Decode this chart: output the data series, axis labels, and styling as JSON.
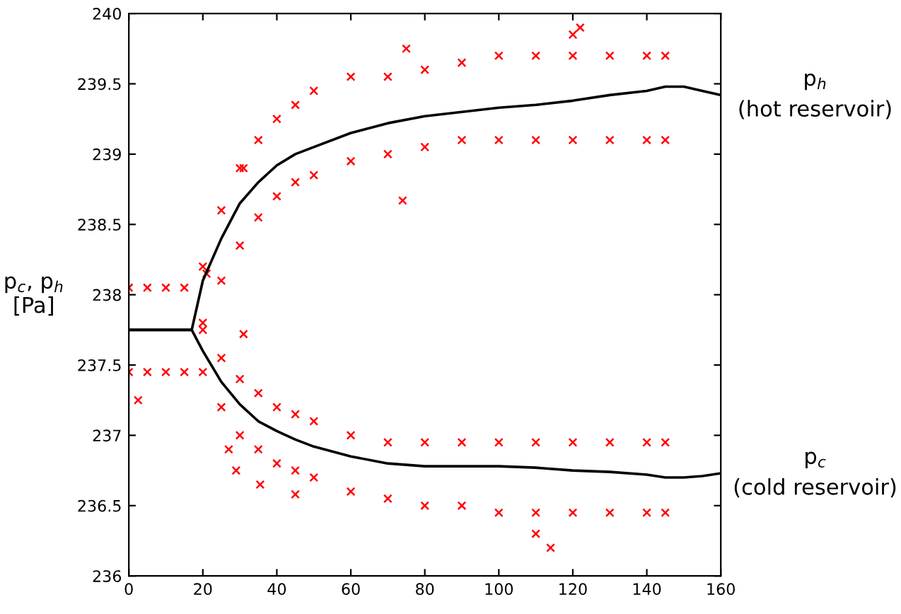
{
  "chart_data": {
    "type": "scatter",
    "ylabel": "p$_{c}$, p$_{h}$\n[Pa]",
    "xlim": [
      0,
      160
    ],
    "xticks": [
      0,
      20,
      40,
      60,
      80,
      100,
      120,
      140,
      160
    ],
    "ylim": [
      236,
      240
    ],
    "yticks": [
      236,
      236.5,
      237,
      237.5,
      238,
      238.5,
      239,
      239.5,
      240
    ],
    "grid": false,
    "legend": "right",
    "series": [
      {
        "color": "#ff0000",
        "marker": "cross",
        "x": [
          0,
          5,
          10,
          15,
          20,
          25,
          30,
          35,
          40,
          45,
          50,
          60,
          70,
          80,
          90,
          100,
          110,
          120,
          130,
          140,
          145,
          0,
          5,
          10,
          15,
          20,
          25,
          30,
          35,
          40,
          45,
          50,
          60,
          70,
          80,
          90,
          100,
          110,
          120,
          130,
          140,
          145,
          20,
          25,
          30,
          35,
          40,
          45,
          50,
          60,
          70,
          80,
          90,
          100,
          110,
          120,
          130,
          140,
          145,
          20,
          25,
          30,
          35,
          40,
          45,
          50,
          60,
          70,
          80,
          90,
          100,
          110,
          120,
          130,
          140,
          145,
          2.5,
          27,
          29,
          35.5,
          45,
          31,
          21,
          31,
          74,
          110,
          114,
          120,
          122,
          75
        ],
        "values": [
          238.05,
          238.05,
          238.05,
          238.05,
          238.2,
          238.6,
          238.9,
          239.1,
          239.25,
          239.35,
          239.45,
          239.55,
          239.55,
          239.6,
          239.65,
          239.7,
          239.7,
          239.7,
          239.7,
          239.7,
          239.7,
          237.45,
          237.45,
          237.45,
          237.45,
          237.8,
          238.1,
          238.35,
          238.55,
          238.7,
          238.8,
          238.85,
          238.95,
          239.0,
          239.05,
          239.1,
          239.1,
          239.1,
          239.1,
          239.1,
          239.1,
          239.1,
          237.75,
          237.55,
          237.4,
          237.3,
          237.2,
          237.15,
          237.1,
          237.0,
          236.95,
          236.95,
          236.95,
          236.95,
          236.95,
          236.95,
          236.95,
          236.95,
          236.95,
          237.45,
          237.2,
          237.0,
          236.9,
          236.8,
          236.75,
          236.7,
          236.6,
          236.55,
          236.5,
          236.5,
          236.45,
          236.45,
          236.45,
          236.45,
          236.45,
          236.45,
          237.25,
          236.9,
          236.75,
          236.65,
          236.58,
          237.72,
          238.15,
          238.9,
          238.67,
          236.3,
          236.2,
          239.85,
          239.9,
          239.75
        ]
      },
      {
        "type": "line",
        "name": "p$_{h}$\n(hot reservoir)",
        "color": "#000000",
        "marker": "none",
        "x": [
          0,
          17,
          20,
          25,
          30,
          35,
          40,
          45,
          50,
          60,
          70,
          80,
          90,
          100,
          110,
          120,
          130,
          140,
          145,
          150,
          155,
          160
        ],
        "values": [
          237.75,
          237.75,
          238.1,
          238.4,
          238.65,
          238.8,
          238.92,
          239.0,
          239.05,
          239.15,
          239.22,
          239.27,
          239.3,
          239.33,
          239.35,
          239.38,
          239.42,
          239.45,
          239.48,
          239.48,
          239.45,
          239.42
        ]
      },
      {
        "type": "line",
        "name": "p$_{c}$\n(cold reservoir)",
        "color": "#000000",
        "marker": "none",
        "x": [
          0,
          17,
          20,
          25,
          30,
          35,
          40,
          45,
          50,
          60,
          70,
          80,
          90,
          100,
          110,
          120,
          130,
          140,
          145,
          150,
          155,
          160
        ],
        "values": [
          237.75,
          237.75,
          237.6,
          237.38,
          237.22,
          237.1,
          237.03,
          236.97,
          236.92,
          236.85,
          236.8,
          236.78,
          236.78,
          236.78,
          236.77,
          236.75,
          236.74,
          236.72,
          236.7,
          236.7,
          236.71,
          236.73
        ]
      }
    ]
  }
}
